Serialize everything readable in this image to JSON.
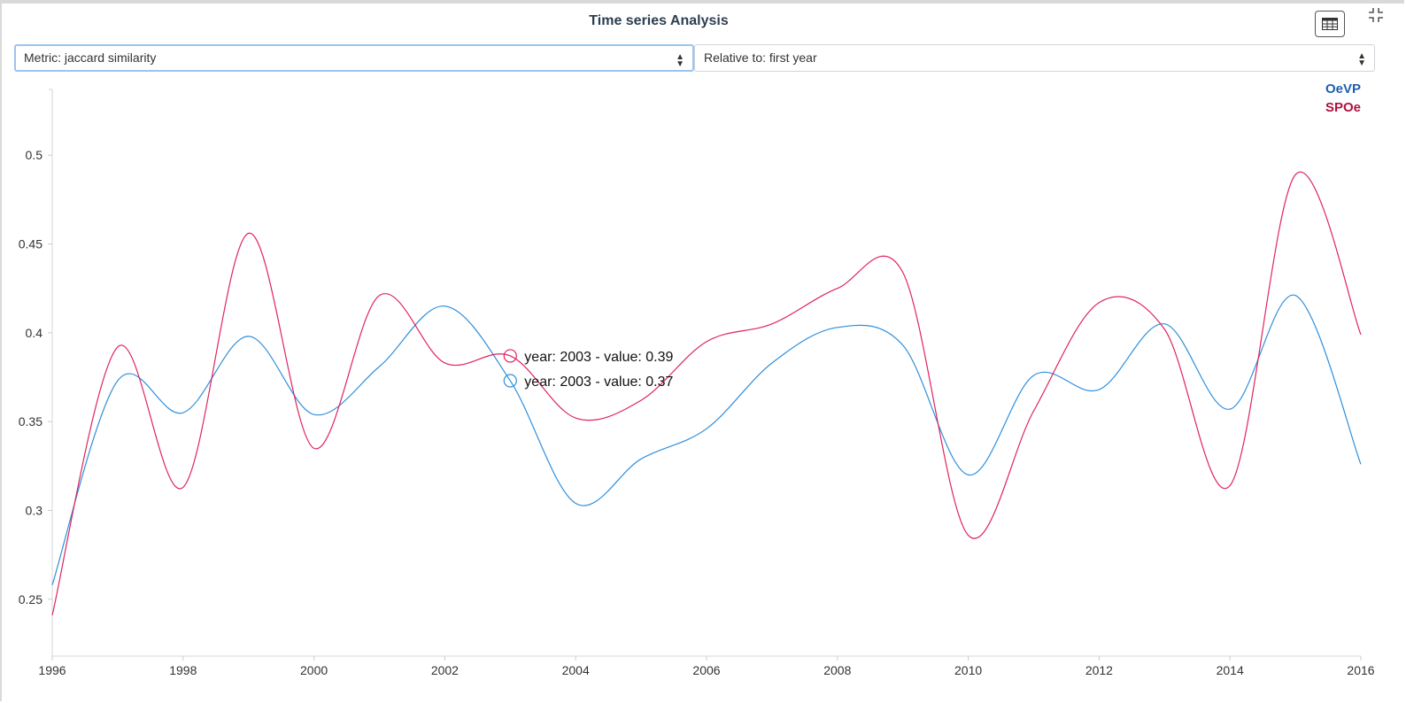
{
  "header": {
    "title": "Time series Analysis"
  },
  "controls": {
    "metric_label": "Metric: jaccard similarity",
    "relative_label": "Relative to: first year"
  },
  "icons": {
    "table": "table-icon",
    "collapse": "collapse-icon"
  },
  "chart_data": {
    "type": "line",
    "x": [
      1996,
      1997,
      1998,
      1999,
      2000,
      2001,
      2002,
      2003,
      2004,
      2005,
      2006,
      2007,
      2008,
      2009,
      2010,
      2011,
      2012,
      2013,
      2014,
      2015,
      2016
    ],
    "series": [
      {
        "name": "OeVP",
        "color": "#2f8fdc",
        "legend_color": "#1f5fb0",
        "values": [
          0.258,
          0.373,
          0.355,
          0.398,
          0.354,
          0.381,
          0.415,
          0.373,
          0.304,
          0.329,
          0.346,
          0.383,
          0.403,
          0.393,
          0.32,
          0.376,
          0.368,
          0.405,
          0.357,
          0.421,
          0.326
        ]
      },
      {
        "name": "SPOe",
        "color": "#e0245e",
        "legend_color": "#b0103f",
        "values": [
          0.241,
          0.392,
          0.313,
          0.456,
          0.335,
          0.421,
          0.383,
          0.387,
          0.352,
          0.362,
          0.395,
          0.405,
          0.425,
          0.434,
          0.286,
          0.356,
          0.417,
          0.402,
          0.314,
          0.489,
          0.399
        ]
      }
    ],
    "ylim": [
      0.218,
      0.537
    ],
    "yticks": [
      0.25,
      0.3,
      0.35,
      0.4,
      0.45,
      0.5
    ],
    "ytick_labels": [
      "0.25",
      "0.3",
      "0.35",
      "0.4",
      "0.45",
      "0.5"
    ],
    "xticks": [
      1996,
      1998,
      2000,
      2002,
      2004,
      2006,
      2008,
      2010,
      2012,
      2014,
      2016
    ],
    "xtick_labels": [
      "1996",
      "1998",
      "2000",
      "2002",
      "2004",
      "2006",
      "2008",
      "2010",
      "2012",
      "2014",
      "2016"
    ],
    "xlabel": "",
    "ylabel": "",
    "legend_position": "top-right",
    "tooltip": {
      "year": 2003,
      "entries": [
        {
          "series": "SPOe",
          "value": 0.387,
          "text": "year: 2003 - value: 0.39"
        },
        {
          "series": "OeVP",
          "value": 0.373,
          "text": "year: 2003 - value: 0.37"
        }
      ]
    }
  }
}
